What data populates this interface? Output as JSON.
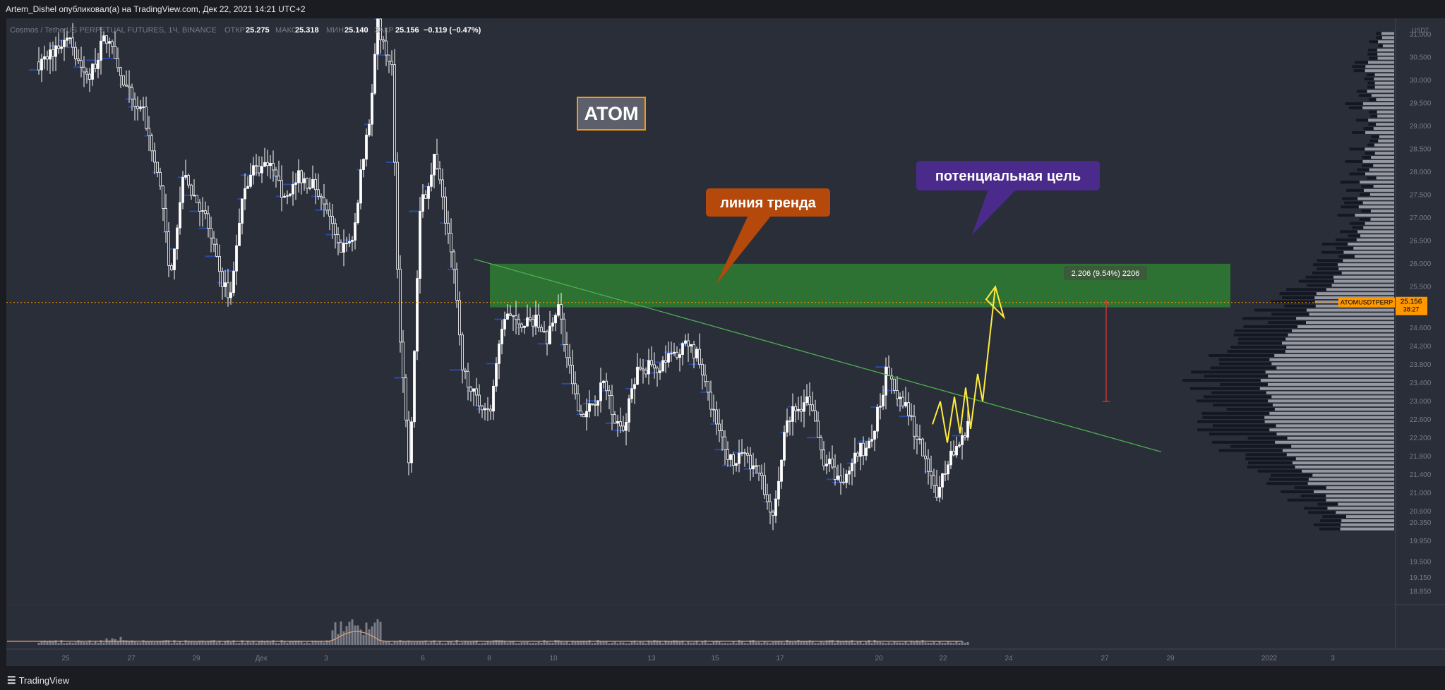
{
  "header": {
    "publish_line": "Artem_Dishel опубликовал(а) на TradingView.com, Дек 22, 2021 14:21 UTC+2"
  },
  "legend": {
    "symbol_line": "Cosmos / TetherUS PERPETUAL FUTURES, 1Ч, BINANCE",
    "open_label": "ОТКР",
    "open_value": "25.275",
    "high_label": "МАКС",
    "high_value": "25.318",
    "low_label": "МИН",
    "low_value": "25.140",
    "close_label": "ЗАКР",
    "close_value": "25.156",
    "change_value": "−0.119 (−0.47%)"
  },
  "footer": {
    "brand": "TradingView"
  },
  "chart_data": {
    "type": "candlestick",
    "symbol": "ATOMUSDTPERP",
    "currency": "USDT",
    "interval": "1Ч",
    "exchange": "BINANCE",
    "colors": {
      "background": "#2a2e39",
      "candle": "#ffffff",
      "volume_profile": "#2962ff",
      "target_zone": "#2e7d32",
      "trendline": "#4caf50",
      "forecast_path": "#ffeb3b",
      "price_line": "#ff9800",
      "measure_arrow": "#e53935"
    },
    "y_axis": {
      "ylim": [
        18.6,
        31.35
      ],
      "ticks": [
        "31.000",
        "30.500",
        "30.000",
        "29.500",
        "29.000",
        "28.500",
        "28.000",
        "27.500",
        "27.000",
        "26.500",
        "26.000",
        "25.500",
        "24.600",
        "24.200",
        "23.800",
        "23.400",
        "23.000",
        "22.600",
        "22.200",
        "21.800",
        "21.400",
        "21.000",
        "20.600",
        "20.350",
        "19.950",
        "19.500",
        "19.150",
        "18.850"
      ],
      "top_label": "USDT"
    },
    "x_axis": {
      "tick_labels": [
        "25",
        "27",
        "29",
        "Дек",
        "3",
        "6",
        "8",
        "10",
        "13",
        "15",
        "17",
        "20",
        "22",
        "24",
        "27",
        "29",
        "2022",
        "3"
      ],
      "tick_x": [
        93,
        186,
        278,
        370,
        462,
        599,
        693,
        784,
        923,
        1013,
        1105,
        1245,
        1336,
        1429,
        1565,
        1658,
        1798,
        1888
      ]
    },
    "candle_path": [
      [
        0,
        30.4
      ],
      [
        40,
        30.9
      ],
      [
        70,
        30.0
      ],
      [
        95,
        31.0
      ],
      [
        120,
        29.9
      ],
      [
        150,
        29.2
      ],
      [
        175,
        27.4
      ],
      [
        185,
        25.7
      ],
      [
        205,
        27.9
      ],
      [
        235,
        27.1
      ],
      [
        255,
        25.8
      ],
      [
        270,
        25.2
      ],
      [
        290,
        27.7
      ],
      [
        320,
        28.3
      ],
      [
        345,
        27.5
      ],
      [
        370,
        27.9
      ],
      [
        400,
        27.6
      ],
      [
        425,
        26.3
      ],
      [
        445,
        26.6
      ],
      [
        460,
        28.4
      ],
      [
        470,
        29.3
      ],
      [
        480,
        31.2
      ],
      [
        500,
        30.3
      ],
      [
        510,
        24.9
      ],
      [
        525,
        21.6
      ],
      [
        540,
        27.1
      ],
      [
        560,
        28.3
      ],
      [
        585,
        26.3
      ],
      [
        600,
        23.8
      ],
      [
        620,
        23.0
      ],
      [
        640,
        22.9
      ],
      [
        660,
        24.9
      ],
      [
        680,
        24.6
      ],
      [
        700,
        24.8
      ],
      [
        720,
        24.4
      ],
      [
        735,
        25.2
      ],
      [
        750,
        23.8
      ],
      [
        770,
        22.6
      ],
      [
        800,
        23.4
      ],
      [
        825,
        22.3
      ],
      [
        850,
        23.7
      ],
      [
        880,
        23.8
      ],
      [
        900,
        24.0
      ],
      [
        920,
        24.3
      ],
      [
        935,
        23.9
      ],
      [
        955,
        22.7
      ],
      [
        975,
        21.8
      ],
      [
        1000,
        21.7
      ],
      [
        1020,
        21.5
      ],
      [
        1040,
        20.4
      ],
      [
        1060,
        22.6
      ],
      [
        1090,
        23.1
      ],
      [
        1110,
        21.8
      ],
      [
        1140,
        21.2
      ],
      [
        1160,
        21.9
      ],
      [
        1180,
        22.1
      ],
      [
        1200,
        23.6
      ],
      [
        1220,
        23.1
      ],
      [
        1245,
        22.2
      ],
      [
        1270,
        20.9
      ],
      [
        1290,
        21.8
      ],
      [
        1310,
        22.2
      ],
      [
        1325,
        23.2
      ],
      [
        1340,
        24.4
      ],
      [
        1355,
        24.9
      ],
      [
        1365,
        25.15
      ]
    ],
    "target_zone": {
      "top": 26.0,
      "bottom": 25.05
    },
    "current_price": {
      "value": "25.156",
      "label": "ATOMUSDTPERP",
      "countdown": "38:27"
    },
    "measure": {
      "text": "2.206 (9.54%) 2206",
      "from": 23.0,
      "to": 25.2
    },
    "trendline": {
      "from_x": 672,
      "from_y": 26.1,
      "to_x": 1645,
      "to_y": 21.9
    },
    "forecast_path": [
      [
        1321,
        22.5
      ],
      [
        1332,
        23.0
      ],
      [
        1342,
        22.1
      ],
      [
        1352,
        23.1
      ],
      [
        1360,
        22.3
      ],
      [
        1368,
        23.3
      ],
      [
        1375,
        22.4
      ],
      [
        1385,
        23.6
      ],
      [
        1392,
        23.0
      ],
      [
        1410,
        25.5
      ],
      [
        1425,
        24.6
      ]
    ],
    "annotations": [
      {
        "text": "ATOM",
        "kind": "title-box"
      },
      {
        "text": "линия тренда",
        "kind": "callout"
      },
      {
        "text": "потенциальная цель",
        "kind": "callout"
      }
    ]
  }
}
